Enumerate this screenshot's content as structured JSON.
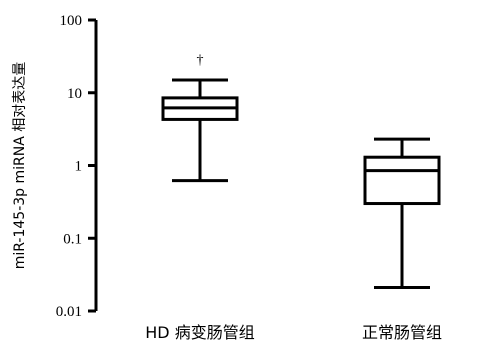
{
  "chart_data": {
    "type": "box",
    "ylabel": "miR-145-3p miRNA 相对表达量",
    "yscale": "log",
    "ylim": [
      0.01,
      100
    ],
    "yticks": [
      "100",
      "10",
      "1",
      "0.1",
      "0.01"
    ],
    "ytick_values": [
      100,
      10,
      1,
      0.1,
      0.01
    ],
    "categories": [
      "HD 病变肠管组",
      "正常肠管组"
    ],
    "boxes": [
      {
        "whisker_high": 15,
        "q3": 8.5,
        "median": 6.2,
        "q1": 4.3,
        "whisker_low": 0.62,
        "annotation": "†"
      },
      {
        "whisker_high": 2.3,
        "q3": 1.3,
        "median": 0.85,
        "q1": 0.3,
        "whisker_low": 0.021
      }
    ],
    "grid": false
  }
}
